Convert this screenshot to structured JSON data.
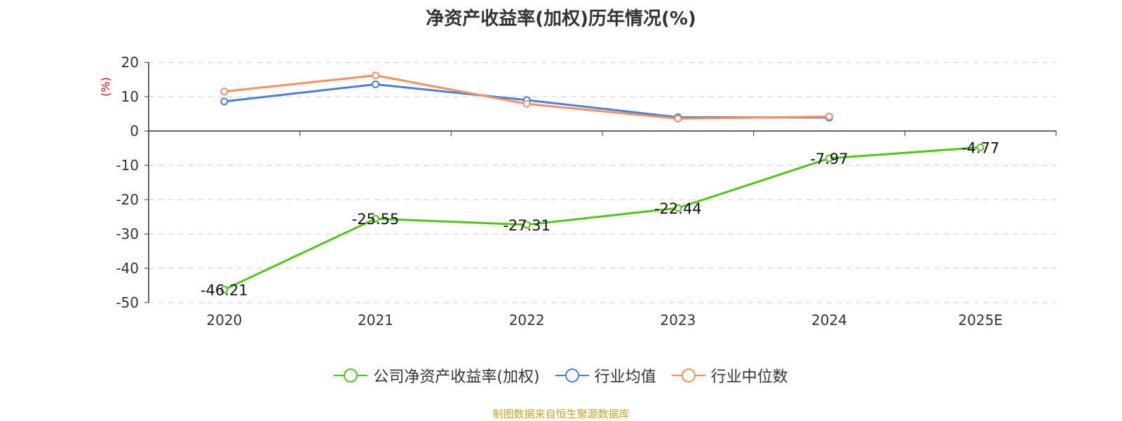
{
  "chart_data": {
    "type": "line",
    "title": "净资产收益率(加权)历年情况(%)",
    "ylabel": "(%)",
    "categories": [
      "2020",
      "2021",
      "2022",
      "2023",
      "2024",
      "2025E"
    ],
    "ylim": [
      -50,
      20
    ],
    "yticks": [
      20,
      10,
      0,
      -10,
      -20,
      -30,
      -40,
      -50
    ],
    "grid": true,
    "legend_position": "bottom",
    "series": [
      {
        "name": "公司净资产收益率(加权)",
        "color": "#52c41a",
        "values": [
          -46.21,
          -25.55,
          -27.31,
          -22.44,
          -7.97,
          -4.77
        ],
        "labels": [
          "-46.21",
          "-25.55",
          "-27.31",
          "-22.44",
          "-7.97",
          "-4.77"
        ]
      },
      {
        "name": "行业均值",
        "color": "#4a7fdc",
        "values": [
          8.6,
          13.6,
          9.0,
          4.0,
          3.9,
          null
        ]
      },
      {
        "name": "行业中位数",
        "color": "#f79059",
        "values": [
          11.5,
          16.2,
          7.9,
          3.6,
          4.2,
          null
        ]
      }
    ]
  },
  "source_note": "制图数据来自恒生聚源数据库"
}
